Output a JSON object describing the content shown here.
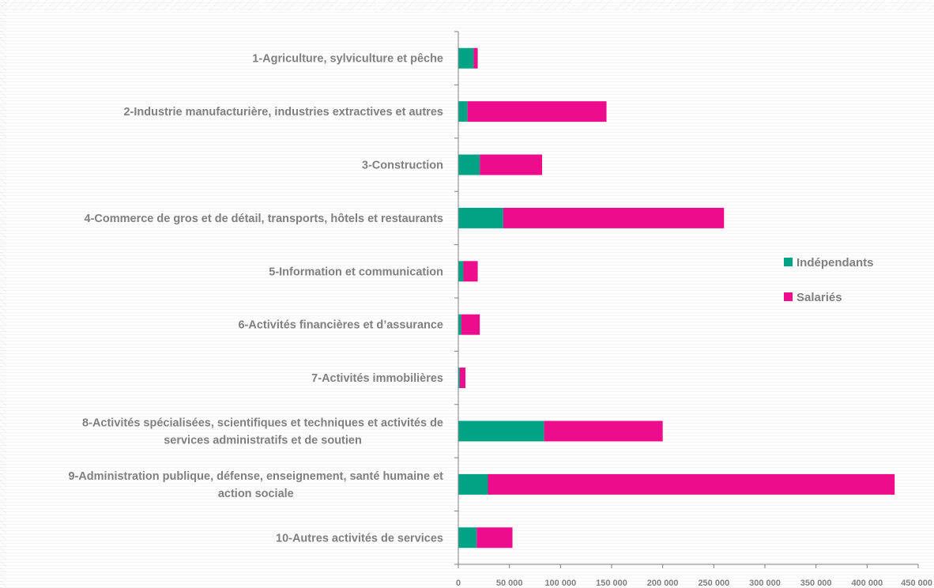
{
  "chart_data": {
    "type": "bar",
    "orientation": "horizontal",
    "stacked": true,
    "categories": [
      [
        "1-Agriculture, sylviculture et pêche"
      ],
      [
        "2-Industrie manufacturière, industries extractives et autres"
      ],
      [
        "3-Construction"
      ],
      [
        "4-Commerce de gros et de détail, transports, hôtels et restaurants"
      ],
      [
        "5-Information et communication"
      ],
      [
        "6-Activités financières et d’assurance"
      ],
      [
        "7-Activités immobilières"
      ],
      [
        "8-Activités spécialisées, scientifiques et techniques et activités de",
        "services administratifs et de soutien"
      ],
      [
        "9-Administration publique, défense, enseignement, santé humaine et",
        "action sociale"
      ],
      [
        "10-Autres activités de services"
      ]
    ],
    "series": [
      {
        "name": "Indépendants",
        "color": "#00a383",
        "values": [
          15000,
          9000,
          21000,
          44000,
          5000,
          3000,
          1500,
          84000,
          29000,
          18000
        ]
      },
      {
        "name": "Salariés",
        "color": "#ec0c8c",
        "values": [
          4000,
          136000,
          61000,
          216000,
          14000,
          18000,
          5500,
          116000,
          398000,
          35000
        ]
      }
    ],
    "xlim": [
      0,
      450000
    ],
    "xticks": [
      0,
      50000,
      100000,
      150000,
      200000,
      250000,
      300000,
      350000,
      400000,
      450000
    ],
    "xtick_labels": [
      "0",
      "50 000",
      "100 000",
      "150 000",
      "200 000",
      "250 000",
      "300 000",
      "350 000",
      "400 000",
      "450 000"
    ],
    "legend_position": "right",
    "grid": false,
    "axis_color": "#7f7f7f",
    "label_color": "#7f7f7f"
  }
}
